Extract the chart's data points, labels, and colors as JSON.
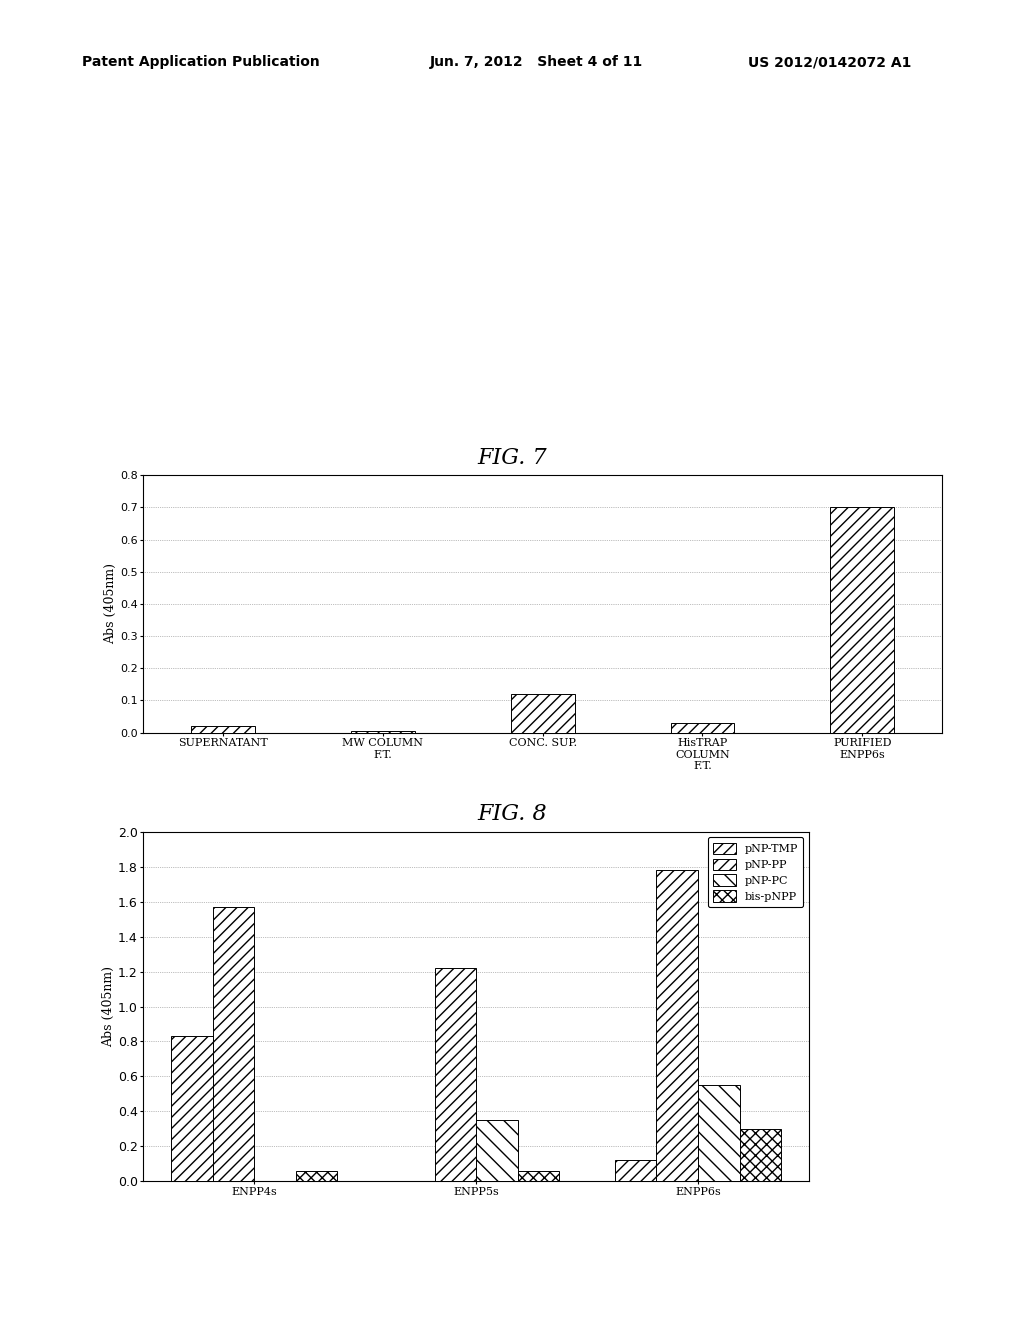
{
  "fig7": {
    "title": "FIG. 7",
    "ylabel": "Abs (405nm)",
    "categories": [
      "SUPERNATANT",
      "MW COLUMN\nF.T.",
      "CONC. SUP.",
      "HisTRAP\nCOLUMN\nF.T.",
      "PURIFIED\nENPP6s"
    ],
    "values": [
      0.02,
      0.005,
      0.12,
      0.03,
      0.7
    ],
    "ylim": [
      0.0,
      0.8
    ],
    "yticks": [
      0.0,
      0.1,
      0.2,
      0.3,
      0.4,
      0.5,
      0.6,
      0.7,
      0.8
    ],
    "hatch": "///",
    "bar_color": "white",
    "bar_edgecolor": "black",
    "bar_width": 0.4
  },
  "fig8": {
    "title": "FIG. 8",
    "ylabel": "Abs (405nm)",
    "categories": [
      "ENPP4s",
      "ENPP5s",
      "ENPP6s"
    ],
    "series_names": [
      "pNP-TMP",
      "pNP-PP",
      "pNP-PC",
      "bis-pNPP"
    ],
    "series_values": [
      [
        0.83,
        0.0,
        0.12
      ],
      [
        1.57,
        1.22,
        1.78
      ],
      [
        0.0,
        0.35,
        0.55
      ],
      [
        0.06,
        0.06,
        0.3
      ]
    ],
    "hatch_patterns": [
      "///",
      "///",
      "\\\\",
      "xxx"
    ],
    "bar_color": "white",
    "bar_edgecolor": "black",
    "ylim": [
      0.0,
      2.0
    ],
    "yticks": [
      0.0,
      0.2,
      0.4,
      0.6,
      0.8,
      1.0,
      1.2,
      1.4,
      1.6,
      1.8,
      2.0
    ],
    "legend_labels": [
      "pNP-TMP",
      "pNP-PP",
      "pNP-PC",
      "bis-pNPP"
    ],
    "bar_width": 0.15
  },
  "background_color": "#ffffff",
  "header_left": "Patent Application Publication",
  "header_mid": "Jun. 7, 2012   Sheet 4 of 11",
  "header_right": "US 2012/0142072 A1"
}
